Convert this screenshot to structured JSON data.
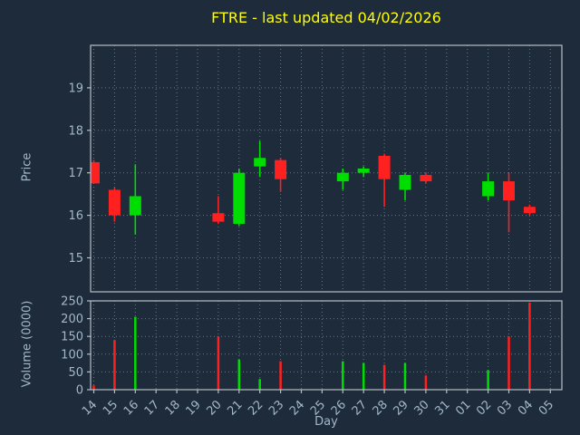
{
  "title": "FTRE - last updated 04/02/2026",
  "colors": {
    "background": "#1d2b3a",
    "up": "#00dd00",
    "down": "#ff2020",
    "grid": "#6e7f8d",
    "tick_label": "#a3b8ca",
    "spine": "#b6bec6",
    "title": "#ffff00"
  },
  "chart_data": [
    {
      "type": "candlestick",
      "title": "FTRE - last updated 04/02/2026",
      "ylabel": "Price",
      "xlabel": "Day",
      "ylim": [
        14.2,
        20.0
      ],
      "yticks": [
        15,
        16,
        17,
        18,
        19
      ],
      "grid": "dotted",
      "x_tick_labels": [
        "14",
        "15",
        "16",
        "17",
        "18",
        "19",
        "20",
        "21",
        "22",
        "23",
        "24",
        "25",
        "26",
        "27",
        "28",
        "29",
        "30",
        "31",
        "01",
        "02",
        "03",
        "04",
        "05"
      ],
      "candles": [
        {
          "x": 0,
          "day": "14",
          "open": 17.25,
          "high": 17.3,
          "low": 16.75,
          "close": 16.75
        },
        {
          "x": 1,
          "day": "15",
          "open": 16.6,
          "high": 16.65,
          "low": 15.85,
          "close": 16.0
        },
        {
          "x": 2,
          "day": "16",
          "open": 16.0,
          "high": 17.2,
          "low": 15.55,
          "close": 16.45
        },
        {
          "x": 6,
          "day": "20",
          "open": 16.05,
          "high": 16.45,
          "low": 15.8,
          "close": 15.85
        },
        {
          "x": 7,
          "day": "21",
          "open": 15.8,
          "high": 17.1,
          "low": 15.75,
          "close": 17.0
        },
        {
          "x": 8,
          "day": "22",
          "open": 17.15,
          "high": 17.75,
          "low": 16.9,
          "close": 17.35
        },
        {
          "x": 9,
          "day": "23",
          "open": 17.3,
          "high": 17.35,
          "low": 16.55,
          "close": 16.85
        },
        {
          "x": 12,
          "day": "26",
          "open": 16.8,
          "high": 17.1,
          "low": 16.6,
          "close": 17.0
        },
        {
          "x": 13,
          "day": "27",
          "open": 17.0,
          "high": 17.15,
          "low": 16.9,
          "close": 17.1
        },
        {
          "x": 14,
          "day": "28",
          "open": 17.4,
          "high": 17.45,
          "low": 16.2,
          "close": 16.85
        },
        {
          "x": 15,
          "day": "29",
          "open": 16.6,
          "high": 17.0,
          "low": 16.35,
          "close": 16.95
        },
        {
          "x": 16,
          "day": "30",
          "open": 16.95,
          "high": 17.0,
          "low": 16.75,
          "close": 16.8
        },
        {
          "x": 19,
          "day": "02",
          "open": 16.45,
          "high": 17.0,
          "low": 16.35,
          "close": 16.8
        },
        {
          "x": 20,
          "day": "03",
          "open": 16.8,
          "high": 17.0,
          "low": 15.6,
          "close": 16.35
        },
        {
          "x": 21,
          "day": "04",
          "open": 16.2,
          "high": 16.25,
          "low": 16.0,
          "close": 16.05
        }
      ]
    },
    {
      "type": "bar",
      "ylabel": "Volume (0000)",
      "ylim": [
        0,
        250
      ],
      "yticks": [
        0,
        50,
        100,
        150,
        200,
        250
      ],
      "bars": [
        {
          "x": 0,
          "day": "14",
          "value": 12,
          "direction": "down"
        },
        {
          "x": 1,
          "day": "15",
          "value": 140,
          "direction": "down"
        },
        {
          "x": 2,
          "day": "16",
          "value": 205,
          "direction": "up"
        },
        {
          "x": 6,
          "day": "20",
          "value": 150,
          "direction": "down"
        },
        {
          "x": 7,
          "day": "21",
          "value": 85,
          "direction": "up"
        },
        {
          "x": 8,
          "day": "22",
          "value": 30,
          "direction": "up"
        },
        {
          "x": 9,
          "day": "23",
          "value": 80,
          "direction": "down"
        },
        {
          "x": 12,
          "day": "26",
          "value": 80,
          "direction": "up"
        },
        {
          "x": 13,
          "day": "27",
          "value": 75,
          "direction": "up"
        },
        {
          "x": 14,
          "day": "28",
          "value": 70,
          "direction": "down"
        },
        {
          "x": 15,
          "day": "29",
          "value": 75,
          "direction": "up"
        },
        {
          "x": 16,
          "day": "30",
          "value": 40,
          "direction": "down"
        },
        {
          "x": 19,
          "day": "02",
          "value": 55,
          "direction": "up"
        },
        {
          "x": 20,
          "day": "03",
          "value": 150,
          "direction": "down"
        },
        {
          "x": 21,
          "day": "04",
          "value": 245,
          "direction": "down"
        }
      ]
    }
  ]
}
